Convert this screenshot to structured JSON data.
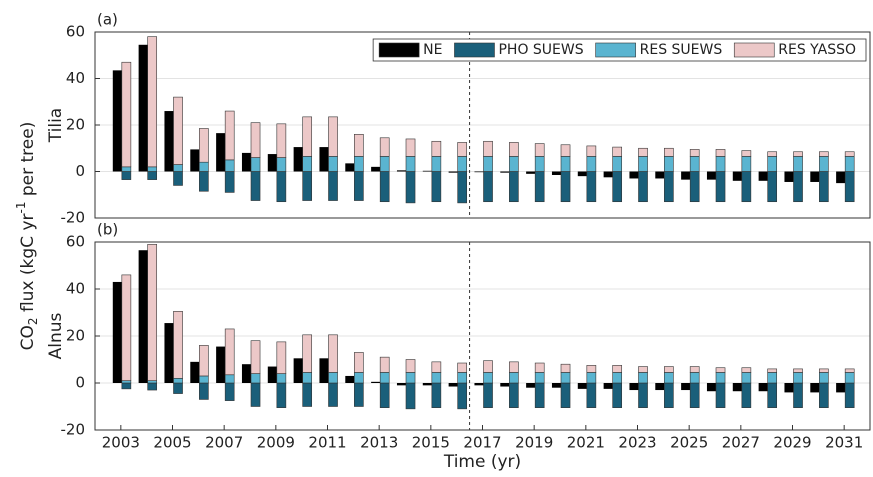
{
  "ylabel": [
    "CO",
    "2",
    " flux (kgC yr",
    "-1",
    " per tree)"
  ],
  "chart_data": [
    {
      "type": "bar",
      "panel": "(a)",
      "species": "Tilia",
      "x": [
        2003,
        2004,
        2005,
        2006,
        2007,
        2008,
        2009,
        2010,
        2011,
        2012,
        2013,
        2014,
        2015,
        2016,
        2017,
        2018,
        2019,
        2020,
        2021,
        2022,
        2023,
        2024,
        2025,
        2026,
        2027,
        2028,
        2029,
        2030,
        2031
      ],
      "xlim": [
        2002,
        2032
      ],
      "ylim": [
        -20,
        60
      ],
      "yticks": [
        -20,
        0,
        20,
        40,
        60
      ],
      "grid": true,
      "vline": 2016.5,
      "legend": "upper right",
      "series": [
        {
          "name": "NE",
          "color": "#000000",
          "position": "left",
          "values": [
            43.5,
            54.5,
            26,
            9.5,
            16.5,
            8,
            7.5,
            10.5,
            10.5,
            3.5,
            2,
            0.5,
            0.3,
            -0.5,
            -0.3,
            -0.5,
            -1,
            -1.5,
            -2,
            -2.5,
            -3,
            -3,
            -3.5,
            -3.5,
            -4,
            -4,
            -4.5,
            -4.5,
            -5
          ]
        },
        {
          "name": "PHO SUEWS",
          "color": "#1a5f7a",
          "position": "right",
          "values": [
            -3.5,
            -3.5,
            -6,
            -8.5,
            -9,
            -12.5,
            -13,
            -12.5,
            -12.5,
            -12.5,
            -13,
            -13.5,
            -13,
            -13.5,
            -13,
            -13,
            -13,
            -13,
            -13,
            -13,
            -13,
            -13,
            -13,
            -13,
            -13,
            -13,
            -13,
            -13,
            -13
          ]
        },
        {
          "name": "RES SUEWS",
          "color": "#5ab4d0",
          "position": "right",
          "values": [
            2,
            2,
            3,
            4,
            5,
            6,
            6,
            6.5,
            6.5,
            6.5,
            6.5,
            6.5,
            6.5,
            6.5,
            6.5,
            6.5,
            6.5,
            6.5,
            6.5,
            6.5,
            6.5,
            6.5,
            6.5,
            6.5,
            6.5,
            6.5,
            6.5,
            6.5,
            6.5
          ]
        },
        {
          "name": "RES YASSO",
          "color": "#ecc8c8",
          "position": "right",
          "values": [
            45,
            56,
            29,
            14.5,
            21,
            15,
            14.5,
            17,
            17,
            9.5,
            8,
            7.5,
            6.5,
            6,
            6.5,
            6,
            5.5,
            5,
            4.5,
            4,
            3.5,
            3.5,
            3,
            3,
            2.5,
            2,
            2,
            2,
            2
          ]
        }
      ]
    },
    {
      "type": "bar",
      "panel": "(b)",
      "species": "Alnus",
      "xlabel": "Time (yr)",
      "x": [
        2003,
        2004,
        2005,
        2006,
        2007,
        2008,
        2009,
        2010,
        2011,
        2012,
        2013,
        2014,
        2015,
        2016,
        2017,
        2018,
        2019,
        2020,
        2021,
        2022,
        2023,
        2024,
        2025,
        2026,
        2027,
        2028,
        2029,
        2030,
        2031
      ],
      "xlim": [
        2002,
        2032
      ],
      "xticks": [
        2003,
        2005,
        2007,
        2009,
        2011,
        2013,
        2015,
        2017,
        2019,
        2021,
        2023,
        2025,
        2027,
        2029,
        2031
      ],
      "ylim": [
        -20,
        60
      ],
      "yticks": [
        -20,
        0,
        20,
        40,
        60
      ],
      "grid": true,
      "vline": 2016.5,
      "series": [
        {
          "color": "#000000",
          "position": "left",
          "values": [
            43,
            56.5,
            25.5,
            9,
            15.5,
            8,
            7,
            10.5,
            10.5,
            3,
            0.5,
            -1,
            -1,
            -1.5,
            -1,
            -1.5,
            -2,
            -2,
            -2.5,
            -2.5,
            -3,
            -3,
            -3,
            -3.5,
            -3.5,
            -3.5,
            -4,
            -4,
            -4
          ]
        },
        {
          "color": "#1a5f7a",
          "position": "right",
          "values": [
            -2.5,
            -3,
            -4.5,
            -7,
            -7.5,
            -10,
            -10.5,
            -10,
            -10,
            -10,
            -10.5,
            -11,
            -10.5,
            -11,
            -10.5,
            -10.5,
            -10.5,
            -10.5,
            -10.5,
            -10.5,
            -10.5,
            -10.5,
            -10.5,
            -10.5,
            -10.5,
            -10.5,
            -10.5,
            -10.5,
            -10.5
          ]
        },
        {
          "color": "#5ab4d0",
          "position": "right",
          "values": [
            1,
            1,
            2,
            3,
            3.5,
            4,
            4,
            4.5,
            4.5,
            4.5,
            4.5,
            4.5,
            4.5,
            4.5,
            4.5,
            4.5,
            4.5,
            4.5,
            4.5,
            4.5,
            4.5,
            4.5,
            4.5,
            4.5,
            4.5,
            4.5,
            4.5,
            4.5,
            4.5
          ]
        },
        {
          "color": "#ecc8c8",
          "position": "right",
          "values": [
            45,
            58,
            28.5,
            13,
            19.5,
            14,
            13.5,
            16,
            16,
            8.5,
            6.5,
            5.5,
            4.5,
            4,
            5,
            4.5,
            4,
            3.5,
            3,
            3,
            2.5,
            2.5,
            2.5,
            2,
            2,
            1.5,
            1.5,
            1.5,
            1.5
          ]
        }
      ]
    }
  ]
}
